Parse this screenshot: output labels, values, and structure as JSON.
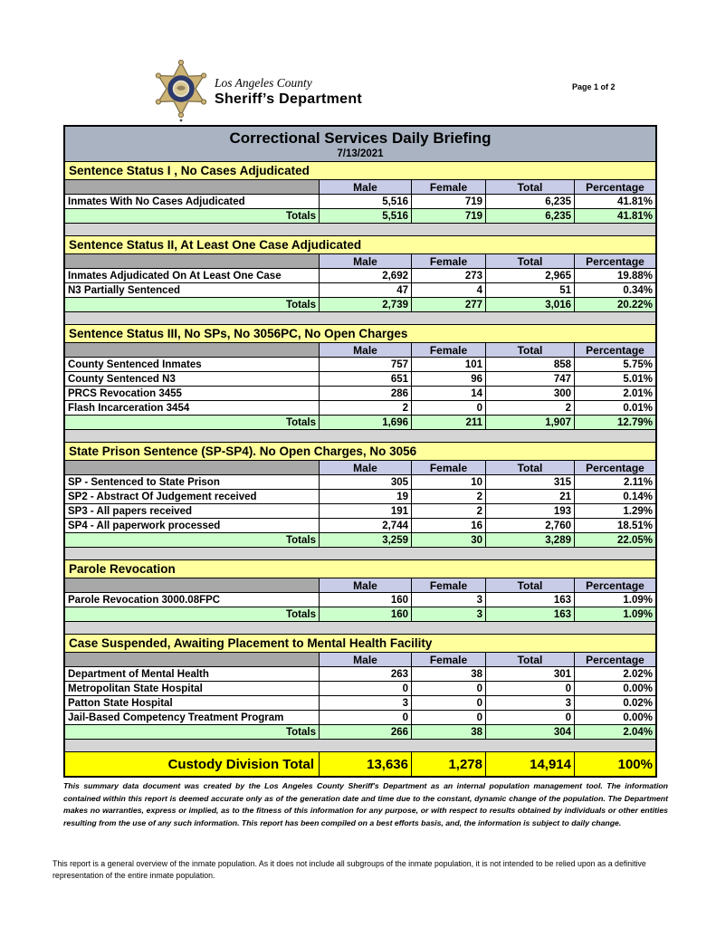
{
  "header": {
    "agency_line1": "Los Angeles County",
    "agency_line2": "Sheriff’s Department",
    "page_label": "Page 1 of 2",
    "badge_icon": "sheriff-star-badge"
  },
  "title_bar": {
    "title": "Correctional Services Daily Briefing",
    "date": "7/13/2021"
  },
  "table": {
    "columns": [
      "Male",
      "Female",
      "Total",
      "Percentage"
    ],
    "totals_label": "Totals",
    "sections": [
      {
        "title": "Sentence Status I , No Cases Adjudicated",
        "rows": [
          [
            "Inmates With No Cases Adjudicated",
            "5,516",
            "719",
            "6,235",
            "41.81%"
          ]
        ],
        "totals": [
          "5,516",
          "719",
          "6,235",
          "41.81%"
        ]
      },
      {
        "title": "Sentence Status II, At Least One Case Adjudicated",
        "rows": [
          [
            "Inmates Adjudicated On At Least One Case",
            "2,692",
            "273",
            "2,965",
            "19.88%"
          ],
          [
            "N3 Partially Sentenced",
            "47",
            "4",
            "51",
            "0.34%"
          ]
        ],
        "totals": [
          "2,739",
          "277",
          "3,016",
          "20.22%"
        ]
      },
      {
        "title": "Sentence Status III, No SPs, No 3056PC, No Open Charges",
        "rows": [
          [
            "County Sentenced Inmates",
            "757",
            "101",
            "858",
            "5.75%"
          ],
          [
            "County Sentenced N3",
            "651",
            "96",
            "747",
            "5.01%"
          ],
          [
            "PRCS Revocation 3455",
            "286",
            "14",
            "300",
            "2.01%"
          ],
          [
            "Flash Incarceration 3454",
            "2",
            "0",
            "2",
            "0.01%"
          ]
        ],
        "totals": [
          "1,696",
          "211",
          "1,907",
          "12.79%"
        ]
      },
      {
        "title": "State Prison Sentence (SP-SP4). No Open Charges, No 3056",
        "rows": [
          [
            "SP - Sentenced to State Prison",
            "305",
            "10",
            "315",
            "2.11%"
          ],
          [
            "SP2 - Abstract Of Judgement received",
            "19",
            "2",
            "21",
            "0.14%"
          ],
          [
            "SP3 - All papers received",
            "191",
            "2",
            "193",
            "1.29%"
          ],
          [
            "SP4 - All paperwork processed",
            "2,744",
            "16",
            "2,760",
            "18.51%"
          ]
        ],
        "totals": [
          "3,259",
          "30",
          "3,289",
          "22.05%"
        ]
      },
      {
        "title": "Parole Revocation",
        "rows": [
          [
            "Parole Revocation 3000.08FPC",
            "160",
            "3",
            "163",
            "1.09%"
          ]
        ],
        "totals": [
          "160",
          "3",
          "163",
          "1.09%"
        ]
      },
      {
        "title": "Case Suspended, Awaiting Placement to Mental Health Facility",
        "rows": [
          [
            "Department of Mental Health",
            "263",
            "38",
            "301",
            "2.02%"
          ],
          [
            "Metropolitan State Hospital",
            "0",
            "0",
            "0",
            "0.00%"
          ],
          [
            "Patton State Hospital",
            "3",
            "0",
            "3",
            "0.02%"
          ],
          [
            "Jail-Based Competency Treatment Program",
            "0",
            "0",
            "0",
            "0.00%"
          ]
        ],
        "totals": [
          "266",
          "38",
          "304",
          "2.04%"
        ]
      }
    ],
    "grand_total": {
      "label": "Custody Division Total",
      "values": [
        "13,636",
        "1,278",
        "14,914",
        "100%"
      ]
    }
  },
  "notes": {
    "disclaimer": "This summary data document was created by the Los Angeles County Sheriff's Department as an internal population management tool.  The information contained within this report is deemed accurate only as of the generation date and time due to the constant, dynamic change of the population.  The Department makes no warranties, express or implied, as to the fitness of this information for any purpose, or with respect to results obtained by individuals or other entities resulting from the use of any such information.  This report has been compiled on a best efforts basis, and, the information is subject to daily change.",
    "footer": "This report is a general overview of the inmate population.  As it does not include all subgroups of the inmate population, it is not intended to be relied upon as a definitive representation of the entire inmate population."
  },
  "colors": {
    "title_bar_bg": "#a9b3c2",
    "section_header_bg": "#ffff9e",
    "column_header_bg": "#c9cce6",
    "blank_cell_bg": "#a8a8a8",
    "spacer_bg": "#d5d5d5",
    "totals_row_bg": "#ccffcc",
    "grand_total_bg": "#ffff00",
    "badge_gold": "#cdb475",
    "badge_navy": "#2c3a6b"
  }
}
